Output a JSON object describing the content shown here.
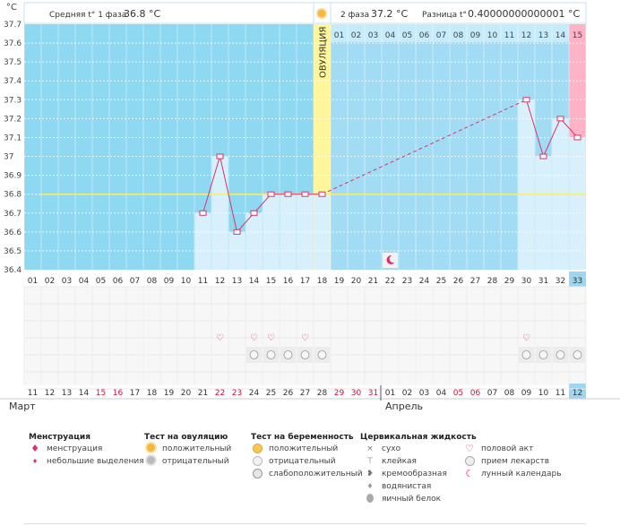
{
  "header": {
    "unit": "°C",
    "phase1_label": "Средняя t° 1 фаза",
    "phase1_value": "36.8 °C",
    "phase2_label": "2 фаза",
    "phase2_value": "37.2 °C",
    "diff_label": "Разница t°",
    "diff_value": "0.40000000000001 °C"
  },
  "chart_data": {
    "type": "bar",
    "title": "",
    "xlabel": "",
    "ylabel": "°C",
    "ylim": [
      36.4,
      37.7
    ],
    "yticks": [
      "37.7",
      "37.6",
      "37.5",
      "37.4",
      "37.3",
      "37.2",
      "37.1",
      "37",
      "36.9",
      "36.8",
      "36.7",
      "36.6",
      "36.5",
      "36.4"
    ],
    "baseline": 36.8,
    "ovulation_label": "ОВУЛЯЦИЯ",
    "ovulation_day_index": 17,
    "cycle_days": [
      "01",
      "02",
      "03",
      "04",
      "05",
      "06",
      "07",
      "08",
      "09",
      "10",
      "11",
      "12",
      "13",
      "14",
      "15",
      "16",
      "17",
      "18",
      "19",
      "20",
      "21",
      "22",
      "23",
      "24",
      "25",
      "26",
      "27",
      "28",
      "29",
      "30",
      "31",
      "32",
      "33"
    ],
    "dpo_labels": [
      "01",
      "02",
      "03",
      "04",
      "05",
      "06",
      "07",
      "08",
      "09",
      "10",
      "11",
      "12",
      "13",
      "14",
      "15"
    ],
    "temperatures": [
      null,
      null,
      null,
      null,
      null,
      null,
      null,
      null,
      null,
      null,
      36.7,
      37.0,
      36.6,
      36.7,
      36.8,
      36.8,
      36.8,
      36.8,
      null,
      null,
      null,
      null,
      null,
      null,
      null,
      null,
      null,
      null,
      null,
      37.3,
      37.0,
      37.2,
      37.1
    ],
    "moon_day_index": 21,
    "sex_day_indices": [
      11,
      13,
      14,
      16,
      29
    ],
    "pill_day_indices": [
      13,
      14,
      15,
      16,
      17,
      29,
      30,
      31,
      32
    ],
    "calendar_dates": [
      "11",
      "12",
      "13",
      "14",
      "15",
      "16",
      "17",
      "18",
      "19",
      "20",
      "21",
      "22",
      "23",
      "24",
      "25",
      "26",
      "27",
      "28",
      "29",
      "30",
      "31",
      "01",
      "02",
      "03",
      "04",
      "05",
      "06",
      "07",
      "08",
      "09",
      "10",
      "11",
      "12"
    ],
    "red_date_indices": [
      4,
      5,
      11,
      12,
      18,
      19,
      20,
      25,
      26
    ],
    "month_march": "Март",
    "month_april": "Апрель",
    "colors": {
      "follicular": "#8fd8f2",
      "luteal": "#a2dcf4",
      "today_bg": "#ffb3c6",
      "ovulation_bg": "#fff59a",
      "bar": "#d8f0fb",
      "line": "#d9336a",
      "baseline": "#f0f07a"
    }
  },
  "legend": {
    "menstruation": {
      "title": "Менструация",
      "items": [
        "менструация",
        "небольшие выделения"
      ]
    },
    "ovulation_test": {
      "title": "Тест на овуляцию",
      "items": [
        "положительный",
        "отрицательный"
      ]
    },
    "pregnancy_test": {
      "title": "Тест на беременность",
      "items": [
        "положительный",
        "отрицательный",
        "слабоположительный"
      ]
    },
    "cervical": {
      "title": "Цервикальная жидкость",
      "items": [
        "сухо",
        "клейкая",
        "кремообразная",
        "водянистая",
        "яичный белок"
      ]
    },
    "other": {
      "items": [
        "половой акт",
        "прием лекарств",
        "лунный календарь"
      ]
    }
  }
}
